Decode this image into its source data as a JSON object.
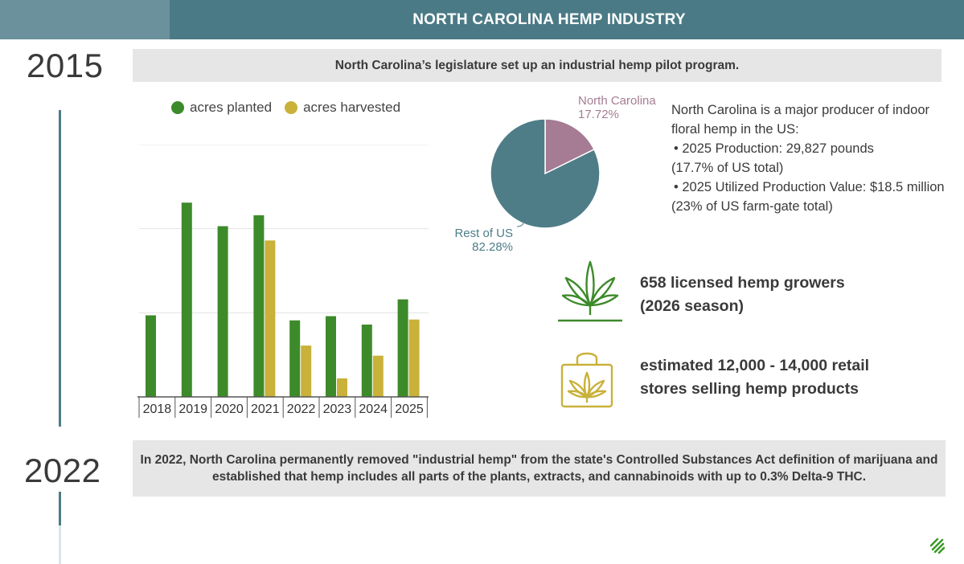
{
  "header": {
    "title": "NORTH CAROLINA HEMP INDUSTRY"
  },
  "timeline": [
    {
      "year": "2015",
      "event": "North Carolina’s legislature set up an industrial hemp pilot program."
    },
    {
      "year": "2022",
      "event_line1": "In 2022, North Carolina permanently removed \"industrial hemp\" from the state's Controlled Substances Act definition of marijuana and",
      "event_line2": "established that hemp includes all parts of the plants, extracts, and cannabinoids with up to 0.3% Delta-9 THC."
    }
  ],
  "colors": {
    "planted": "#3d8a2a",
    "harvested": "#c9b13a",
    "nc": "#a57c93",
    "rest": "#4e7d88",
    "accent": "#4a7a86"
  },
  "chart_data": [
    {
      "type": "bar",
      "categories": [
        "2018",
        "2019",
        "2020",
        "2021",
        "2022",
        "2023",
        "2024",
        "2025"
      ],
      "series": [
        {
          "name": "acres planted",
          "values": [
            9700,
            23100,
            20300,
            21600,
            9100,
            9600,
            8600,
            11600
          ]
        },
        {
          "name": "acres harvested",
          "values": [
            null,
            null,
            null,
            18600,
            6100,
            2200,
            4900,
            9200
          ]
        }
      ],
      "ylim": [
        0,
        30000
      ],
      "grid": true,
      "legend": "top"
    },
    {
      "type": "pie",
      "slices": [
        {
          "label": "North Carolina",
          "value": 17.72,
          "pct_text": "17.72%"
        },
        {
          "label": "Rest of US",
          "value": 82.28,
          "pct_text": "82.28%"
        }
      ]
    }
  ],
  "facts": {
    "intro_1": "North Carolina is a major producer of indoor",
    "intro_2": "floral hemp in the US:",
    "bullet1_a": "• 2025 Production: 29,827 pounds",
    "bullet1_b": "(17.7% of US total)",
    "bullet2_a": "• 2025 Utilized Production Value: $18.5 million",
    "bullet2_b": "(23% of US farm-gate total)"
  },
  "stats": {
    "growers_1": "658 licensed hemp growers",
    "growers_2": "(2026 season)",
    "stores_1": "estimated 12,000 - 14,000 retail",
    "stores_2": "stores selling hemp products"
  },
  "icons": {
    "growers": "hemp-leaf-icon",
    "stores": "shopping-bag-leaf-icon",
    "logo": "brand-logo-icon"
  }
}
